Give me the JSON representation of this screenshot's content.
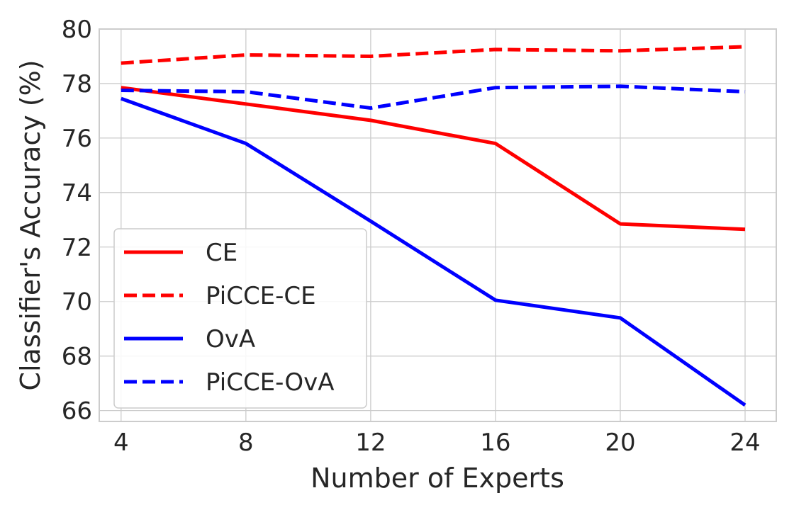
{
  "chart_data": {
    "type": "line",
    "xlabel": "Number of Experts",
    "ylabel": "Classifier's Accuracy (%)",
    "x": [
      4,
      8,
      12,
      16,
      20,
      24
    ],
    "xticks": [
      4,
      8,
      12,
      16,
      20,
      24
    ],
    "xlim": [
      3.3,
      25.0
    ],
    "yticks": [
      66,
      68,
      70,
      72,
      74,
      76,
      78,
      80
    ],
    "ylim": [
      65.6,
      80.0
    ],
    "grid": true,
    "legend_position": "lower-left",
    "series": [
      {
        "name": "CE",
        "color": "#ff0000",
        "style": "solid",
        "values": [
          77.85,
          77.25,
          76.65,
          75.8,
          72.85,
          72.65
        ]
      },
      {
        "name": "PiCCE-CE",
        "color": "#ff0000",
        "style": "dashed",
        "values": [
          78.75,
          79.05,
          79.0,
          79.25,
          79.2,
          79.35
        ]
      },
      {
        "name": "OvA",
        "color": "#0000ff",
        "style": "solid",
        "values": [
          77.45,
          75.8,
          72.95,
          70.05,
          69.4,
          66.2
        ]
      },
      {
        "name": "PiCCE-OvA",
        "color": "#0000ff",
        "style": "dashed",
        "values": [
          77.75,
          77.7,
          77.1,
          77.85,
          77.9,
          77.7
        ]
      }
    ]
  }
}
